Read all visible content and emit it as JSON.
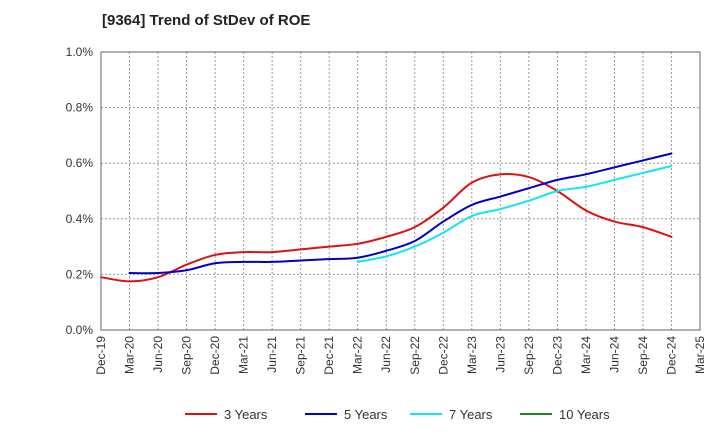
{
  "chart_data": {
    "type": "line",
    "title": "[9364]  Trend of StDev of ROE",
    "x_labels": [
      "Dec-19",
      "Mar-20",
      "Jun-20",
      "Sep-20",
      "Dec-20",
      "Mar-21",
      "Jun-21",
      "Sep-21",
      "Dec-21",
      "Mar-22",
      "Jun-22",
      "Sep-22",
      "Dec-22",
      "Mar-23",
      "Jun-23",
      "Sep-23",
      "Dec-23",
      "Mar-24",
      "Jun-24",
      "Sep-24",
      "Dec-24",
      "Mar-25"
    ],
    "y_ticks": [
      "0.0%",
      "0.2%",
      "0.4%",
      "0.6%",
      "0.8%",
      "1.0%"
    ],
    "ylim": [
      0,
      1.0
    ],
    "y_unit": "%",
    "grid": true,
    "legend_position": "bottom",
    "series": [
      {
        "name": "3 Years",
        "color": "#dd1111",
        "values": [
          0.19,
          0.175,
          0.19,
          0.235,
          0.27,
          0.28,
          0.28,
          0.29,
          0.3,
          0.31,
          0.335,
          0.37,
          0.44,
          0.53,
          0.56,
          0.55,
          0.5,
          0.43,
          0.39,
          0.37,
          0.335,
          null
        ]
      },
      {
        "name": "5 Years",
        "color": "#0000cc",
        "values": [
          null,
          0.205,
          0.205,
          0.215,
          0.24,
          0.245,
          0.245,
          0.25,
          0.255,
          0.26,
          0.285,
          0.32,
          0.39,
          0.45,
          0.48,
          0.51,
          0.54,
          0.56,
          0.585,
          0.61,
          0.635,
          null
        ]
      },
      {
        "name": "7 Years",
        "color": "#11e6ee",
        "values": [
          null,
          null,
          null,
          null,
          null,
          null,
          null,
          null,
          null,
          0.245,
          0.265,
          0.3,
          0.35,
          0.41,
          0.435,
          0.465,
          0.5,
          0.515,
          0.54,
          0.565,
          0.59,
          null
        ]
      },
      {
        "name": "10 Years",
        "color": "#228822",
        "values": [
          null,
          null,
          null,
          null,
          null,
          null,
          null,
          null,
          null,
          null,
          null,
          null,
          null,
          null,
          null,
          null,
          null,
          null,
          null,
          null,
          null,
          null
        ]
      }
    ]
  }
}
